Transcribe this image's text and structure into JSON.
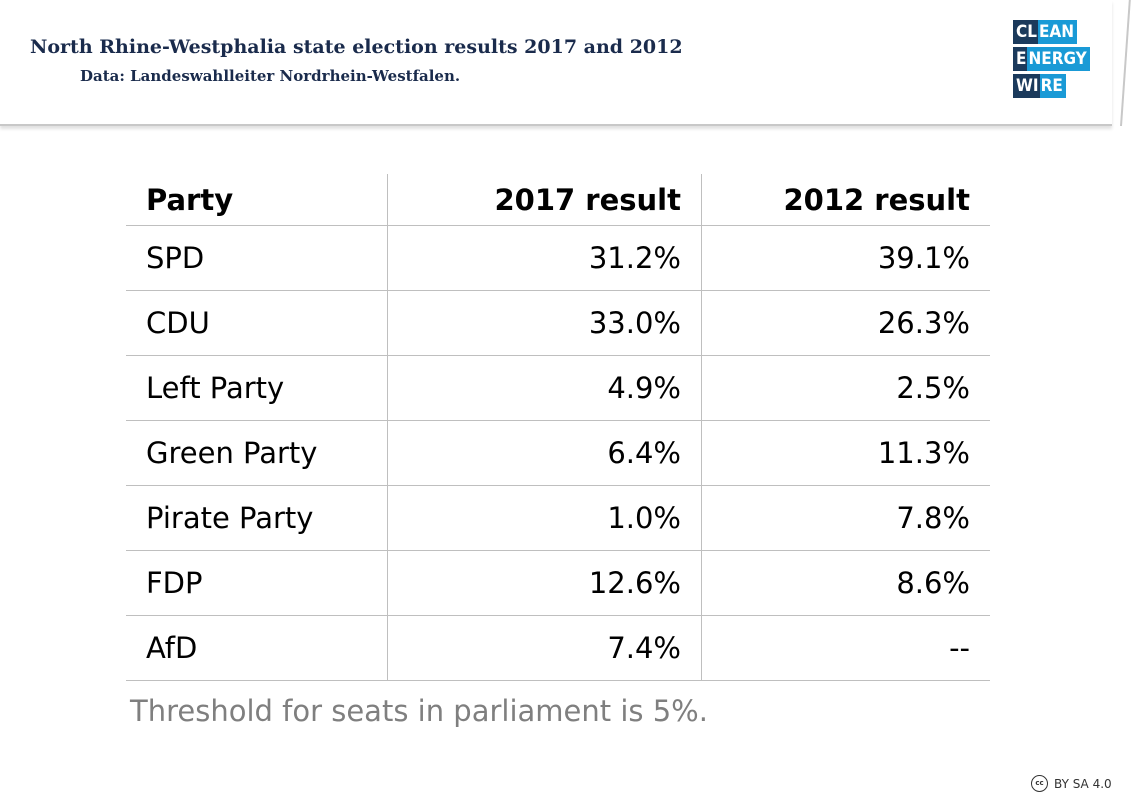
{
  "header": {
    "title": "North Rhine-Westphalia state election results 2017 and 2012",
    "subtitle": "Data: Landeswahlleiter Nordrhein-Westfalen."
  },
  "logo": {
    "line1": {
      "lead": "CL",
      "accent": "EAN"
    },
    "line2": {
      "lead": "E",
      "accent": "NERGY"
    },
    "line3": {
      "lead": "WI",
      "accent": "RE"
    },
    "colors": {
      "dark": "#1b3a5c",
      "accent": "#1a9ad6"
    }
  },
  "chart_data": {
    "type": "table",
    "columns": [
      "Party",
      "2017 result",
      "2012 result"
    ],
    "rows": [
      [
        "SPD",
        "31.2%",
        "39.1%"
      ],
      [
        "CDU",
        "33.0%",
        "26.3%"
      ],
      [
        "Left Party",
        "4.9%",
        "2.5%"
      ],
      [
        "Green Party",
        "6.4%",
        "11.3%"
      ],
      [
        "Pirate Party",
        "1.0%",
        "7.8%"
      ],
      [
        "FDP",
        "12.6%",
        "8.6%"
      ],
      [
        "AfD",
        "7.4%",
        "--"
      ]
    ]
  },
  "footnote": "Threshold for seats in parliament is 5%.",
  "license": {
    "icon": "cc-icon",
    "icon_text": "cc",
    "text": "BY SA 4.0"
  }
}
